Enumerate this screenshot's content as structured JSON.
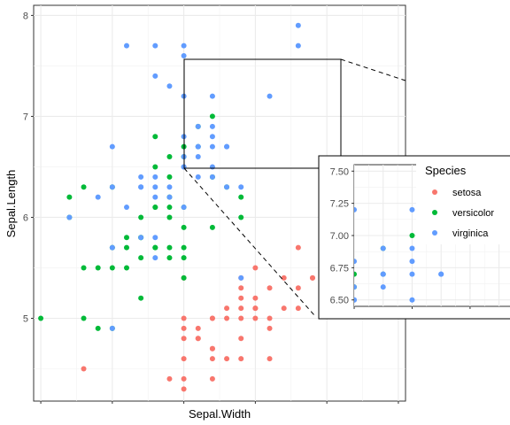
{
  "chart_data": {
    "type": "scatter",
    "xlabel": "Sepal.Width",
    "ylabel": "Sepal.Length",
    "xlim": [
      1.95,
      4.55
    ],
    "ylim": [
      4.18,
      8.1
    ],
    "y_ticks": [
      "5",
      "6",
      "7",
      "8"
    ],
    "x_ticks": [],
    "grid": true,
    "legend": {
      "title": "Species",
      "placement": "right",
      "entries": [
        {
          "name": "setosa",
          "color": "#F8766D"
        },
        {
          "name": "versicolor",
          "color": "#00BA38"
        },
        {
          "name": "virginica",
          "color": "#619CFF"
        }
      ]
    },
    "series": [
      {
        "name": "setosa",
        "color": "#F8766D",
        "points": [
          [
            2.3,
            4.5
          ],
          [
            2.9,
            4.4
          ],
          [
            3.0,
            4.4
          ],
          [
            3.2,
            4.4
          ],
          [
            3.0,
            4.3
          ],
          [
            3.0,
            4.6
          ],
          [
            3.2,
            4.6
          ],
          [
            3.3,
            4.6
          ],
          [
            3.4,
            4.6
          ],
          [
            3.6,
            4.6
          ],
          [
            3.0,
            4.8
          ],
          [
            3.1,
            4.8
          ],
          [
            3.4,
            4.8
          ],
          [
            3.2,
            4.7
          ],
          [
            3.2,
            4.7
          ],
          [
            3.0,
            4.9
          ],
          [
            3.1,
            4.9
          ],
          [
            3.6,
            4.9
          ],
          [
            3.0,
            5.0
          ],
          [
            3.2,
            5.0
          ],
          [
            3.3,
            5.0
          ],
          [
            3.4,
            5.0
          ],
          [
            3.5,
            5.0
          ],
          [
            3.6,
            5.0
          ],
          [
            3.3,
            5.1
          ],
          [
            3.4,
            5.1
          ],
          [
            3.5,
            5.1
          ],
          [
            3.7,
            5.1
          ],
          [
            3.8,
            5.1
          ],
          [
            3.4,
            5.2
          ],
          [
            3.5,
            5.2
          ],
          [
            4.1,
            5.2
          ],
          [
            3.4,
            5.4
          ],
          [
            3.7,
            5.4
          ],
          [
            3.9,
            5.4
          ],
          [
            3.0,
            5.4
          ],
          [
            3.5,
            5.5
          ],
          [
            4.2,
            5.5
          ],
          [
            3.8,
            5.7
          ],
          [
            4.4,
            5.7
          ],
          [
            3.4,
            5.3
          ],
          [
            4.0,
            5.8
          ],
          [
            3.6,
            5.3
          ],
          [
            3.9,
            5.4
          ],
          [
            3.1,
            4.8
          ],
          [
            3.5,
            5.1
          ],
          [
            3.8,
            5.3
          ],
          [
            3.2,
            5.0
          ]
        ]
      },
      {
        "name": "versicolor",
        "color": "#00BA38",
        "points": [
          [
            2.0,
            5.0
          ],
          [
            2.2,
            6.0
          ],
          [
            2.2,
            6.2
          ],
          [
            2.3,
            5.5
          ],
          [
            2.3,
            6.3
          ],
          [
            2.3,
            5.0
          ],
          [
            2.4,
            5.5
          ],
          [
            2.4,
            4.9
          ],
          [
            2.5,
            5.5
          ],
          [
            2.5,
            5.7
          ],
          [
            2.5,
            6.3
          ],
          [
            2.5,
            4.9
          ],
          [
            2.6,
            5.5
          ],
          [
            2.6,
            5.7
          ],
          [
            2.6,
            5.8
          ],
          [
            2.7,
            5.6
          ],
          [
            2.7,
            5.8
          ],
          [
            2.7,
            6.0
          ],
          [
            2.7,
            5.2
          ],
          [
            2.7,
            5.8
          ],
          [
            2.8,
            5.7
          ],
          [
            2.8,
            6.1
          ],
          [
            2.8,
            6.5
          ],
          [
            2.8,
            6.8
          ],
          [
            2.8,
            5.7
          ],
          [
            2.8,
            6.1
          ],
          [
            2.9,
            6.1
          ],
          [
            2.9,
            5.6
          ],
          [
            2.9,
            6.0
          ],
          [
            2.9,
            6.4
          ],
          [
            2.9,
            6.2
          ],
          [
            2.9,
            5.7
          ],
          [
            2.9,
            6.6
          ],
          [
            3.0,
            6.6
          ],
          [
            3.0,
            6.7
          ],
          [
            3.0,
            5.7
          ],
          [
            3.0,
            5.4
          ],
          [
            3.0,
            5.6
          ],
          [
            3.0,
            6.1
          ],
          [
            3.0,
            5.9
          ],
          [
            3.1,
            6.9
          ],
          [
            3.1,
            6.7
          ],
          [
            3.2,
            6.4
          ],
          [
            3.2,
            7.0
          ],
          [
            3.2,
            5.9
          ],
          [
            3.3,
            6.3
          ],
          [
            3.4,
            6.0
          ],
          [
            3.4,
            6.2
          ]
        ]
      },
      {
        "name": "virginica",
        "color": "#619CFF",
        "points": [
          [
            2.2,
            6.0
          ],
          [
            2.5,
            4.9
          ],
          [
            2.5,
            5.7
          ],
          [
            2.5,
            6.3
          ],
          [
            2.5,
            6.7
          ],
          [
            2.6,
            7.7
          ],
          [
            2.7,
            5.8
          ],
          [
            2.7,
            6.3
          ],
          [
            2.7,
            6.4
          ],
          [
            2.8,
            5.8
          ],
          [
            2.8,
            6.2
          ],
          [
            2.8,
            6.4
          ],
          [
            2.8,
            5.6
          ],
          [
            2.8,
            6.3
          ],
          [
            2.8,
            7.4
          ],
          [
            2.8,
            7.7
          ],
          [
            2.9,
            6.3
          ],
          [
            2.9,
            7.3
          ],
          [
            3.0,
            6.5
          ],
          [
            3.0,
            7.2
          ],
          [
            3.0,
            7.7
          ],
          [
            3.0,
            6.1
          ],
          [
            3.0,
            7.6
          ],
          [
            3.1,
            6.9
          ],
          [
            3.1,
            6.7
          ],
          [
            3.1,
            6.4
          ],
          [
            3.2,
            6.4
          ],
          [
            3.2,
            6.9
          ],
          [
            3.2,
            7.2
          ],
          [
            3.2,
            6.5
          ],
          [
            3.3,
            6.7
          ],
          [
            3.3,
            6.3
          ],
          [
            3.4,
            6.3
          ],
          [
            3.4,
            5.4
          ],
          [
            3.6,
            7.2
          ],
          [
            3.8,
            7.7
          ],
          [
            3.8,
            7.9
          ],
          [
            3.0,
            6.8
          ],
          [
            3.2,
            6.8
          ],
          [
            3.1,
            6.7
          ],
          [
            3.2,
            6.7
          ],
          [
            3.3,
            6.7
          ],
          [
            2.9,
            6.2
          ],
          [
            3.1,
            6.6
          ],
          [
            3.0,
            6.5
          ],
          [
            2.4,
            6.2
          ],
          [
            2.6,
            6.1
          ],
          [
            2.7,
            6.3
          ],
          [
            3.0,
            6.6
          ]
        ]
      }
    ],
    "inset": {
      "xlim": [
        3.0,
        3.55
      ],
      "ylim": [
        6.45,
        7.55
      ],
      "y_ticks": [
        "6.50",
        "6.75",
        "7.00",
        "7.25",
        "7.50"
      ]
    }
  }
}
